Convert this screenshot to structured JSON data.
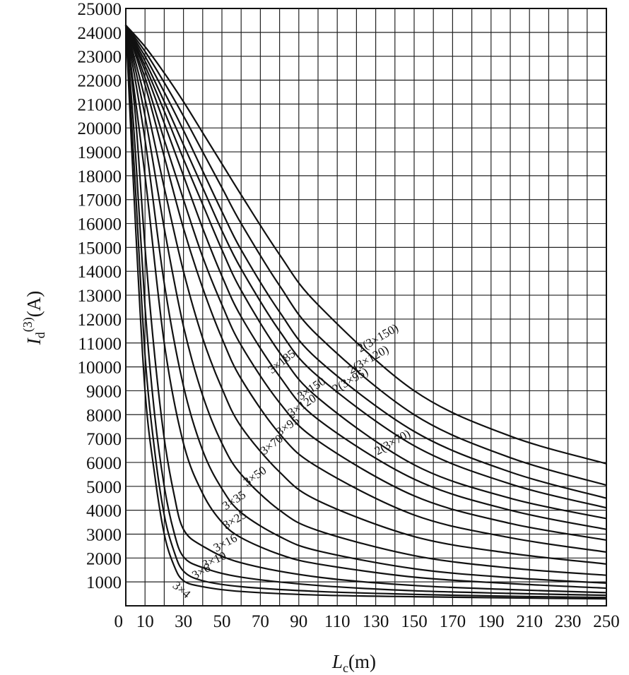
{
  "chart_data": {
    "type": "line",
    "xlabel_symbol": "L",
    "xlabel_sub": "c",
    "xlabel_unit": "(m)",
    "ylabel_symbol": "I",
    "ylabel_sub": "d",
    "ylabel_sup": "(3)",
    "ylabel_unit": "(A)",
    "xlim": [
      0,
      250
    ],
    "ylim": [
      0,
      25000
    ],
    "x_ticks": [
      0,
      10,
      30,
      50,
      70,
      90,
      110,
      130,
      150,
      170,
      190,
      210,
      230,
      250
    ],
    "y_ticks": [
      1000,
      2000,
      3000,
      4000,
      5000,
      6000,
      7000,
      8000,
      9000,
      10000,
      11000,
      12000,
      13000,
      14000,
      15000,
      16000,
      17000,
      18000,
      19000,
      20000,
      21000,
      22000,
      23000,
      24000,
      25000
    ],
    "grid": true,
    "series": [
      {
        "name": "3×4",
        "points": [
          [
            0,
            24300
          ],
          [
            5,
            16000
          ],
          [
            10,
            9000
          ],
          [
            15,
            5500
          ],
          [
            20,
            3000
          ],
          [
            25,
            1700
          ],
          [
            30,
            1050
          ],
          [
            40,
            800
          ],
          [
            60,
            600
          ],
          [
            100,
            450
          ],
          [
            150,
            380
          ],
          [
            200,
            330
          ],
          [
            250,
            290
          ]
        ]
      },
      {
        "name": "3×6",
        "points": [
          [
            0,
            24300
          ],
          [
            5,
            17500
          ],
          [
            10,
            10500
          ],
          [
            15,
            6500
          ],
          [
            20,
            3800
          ],
          [
            25,
            2300
          ],
          [
            30,
            1450
          ],
          [
            40,
            1050
          ],
          [
            60,
            800
          ],
          [
            100,
            600
          ],
          [
            150,
            480
          ],
          [
            200,
            400
          ],
          [
            250,
            350
          ]
        ]
      },
      {
        "name": "3×10",
        "points": [
          [
            0,
            24300
          ],
          [
            5,
            19000
          ],
          [
            10,
            12500
          ],
          [
            15,
            8000
          ],
          [
            20,
            5000
          ],
          [
            25,
            3100
          ],
          [
            30,
            2050
          ],
          [
            40,
            1600
          ],
          [
            60,
            1200
          ],
          [
            100,
            850
          ],
          [
            150,
            630
          ],
          [
            200,
            520
          ],
          [
            250,
            440
          ]
        ]
      },
      {
        "name": "3×16",
        "points": [
          [
            0,
            24300
          ],
          [
            5,
            20500
          ],
          [
            10,
            15000
          ],
          [
            15,
            10500
          ],
          [
            20,
            7000
          ],
          [
            25,
            4700
          ],
          [
            30,
            3200
          ],
          [
            40,
            2500
          ],
          [
            60,
            1800
          ],
          [
            100,
            1200
          ],
          [
            150,
            850
          ],
          [
            200,
            680
          ],
          [
            250,
            550
          ]
        ]
      },
      {
        "name": "3×25",
        "points": [
          [
            0,
            24300
          ],
          [
            10,
            18000
          ],
          [
            20,
            11000
          ],
          [
            30,
            6800
          ],
          [
            40,
            4700
          ],
          [
            50,
            3500
          ],
          [
            60,
            2850
          ],
          [
            80,
            2150
          ],
          [
            100,
            1750
          ],
          [
            150,
            1200
          ],
          [
            200,
            930
          ],
          [
            250,
            740
          ]
        ]
      },
      {
        "name": "3×35",
        "points": [
          [
            0,
            24300
          ],
          [
            10,
            19500
          ],
          [
            20,
            13500
          ],
          [
            30,
            9200
          ],
          [
            40,
            6500
          ],
          [
            50,
            4900
          ],
          [
            60,
            3900
          ],
          [
            80,
            2900
          ],
          [
            100,
            2300
          ],
          [
            150,
            1550
          ],
          [
            200,
            1180
          ],
          [
            250,
            950
          ]
        ]
      },
      {
        "name": "3×50",
        "points": [
          [
            0,
            24300
          ],
          [
            10,
            20500
          ],
          [
            20,
            15800
          ],
          [
            30,
            11700
          ],
          [
            40,
            8800
          ],
          [
            50,
            6800
          ],
          [
            60,
            5500
          ],
          [
            80,
            4000
          ],
          [
            100,
            3150
          ],
          [
            150,
            2100
          ],
          [
            200,
            1580
          ],
          [
            250,
            1280
          ]
        ]
      },
      {
        "name": "3×70",
        "points": [
          [
            0,
            24300
          ],
          [
            10,
            21200
          ],
          [
            20,
            17500
          ],
          [
            30,
            14000
          ],
          [
            40,
            11200
          ],
          [
            50,
            9100
          ],
          [
            60,
            7500
          ],
          [
            80,
            5600
          ],
          [
            100,
            4400
          ],
          [
            150,
            2900
          ],
          [
            200,
            2200
          ],
          [
            250,
            1750
          ]
        ]
      },
      {
        "name": "3×95",
        "points": [
          [
            0,
            24300
          ],
          [
            10,
            21800
          ],
          [
            20,
            18800
          ],
          [
            30,
            15800
          ],
          [
            40,
            13300
          ],
          [
            50,
            11200
          ],
          [
            60,
            9500
          ],
          [
            80,
            7200
          ],
          [
            100,
            5800
          ],
          [
            150,
            3800
          ],
          [
            200,
            2850
          ],
          [
            250,
            2250
          ]
        ]
      },
      {
        "name": "3×120",
        "points": [
          [
            0,
            24300
          ],
          [
            10,
            22100
          ],
          [
            20,
            19500
          ],
          [
            30,
            17000
          ],
          [
            40,
            14600
          ],
          [
            50,
            12600
          ],
          [
            60,
            10900
          ],
          [
            80,
            8500
          ],
          [
            100,
            6900
          ],
          [
            150,
            4600
          ],
          [
            200,
            3450
          ],
          [
            250,
            2750
          ]
        ]
      },
      {
        "name": "3×150",
        "points": [
          [
            0,
            24300
          ],
          [
            10,
            22400
          ],
          [
            20,
            20200
          ],
          [
            30,
            18000
          ],
          [
            40,
            15800
          ],
          [
            50,
            13800
          ],
          [
            60,
            12100
          ],
          [
            80,
            9600
          ],
          [
            100,
            7800
          ],
          [
            150,
            5300
          ],
          [
            200,
            4000
          ],
          [
            250,
            3200
          ]
        ]
      },
      {
        "name": "3×185",
        "points": [
          [
            0,
            24300
          ],
          [
            10,
            22600
          ],
          [
            20,
            20700
          ],
          [
            30,
            18700
          ],
          [
            40,
            16800
          ],
          [
            50,
            14900
          ],
          [
            60,
            13200
          ],
          [
            80,
            10600
          ],
          [
            100,
            8700
          ],
          [
            150,
            5900
          ],
          [
            200,
            4500
          ],
          [
            250,
            3650
          ]
        ]
      },
      {
        "name": "2(3×70)",
        "points": [
          [
            0,
            24300
          ],
          [
            10,
            22800
          ],
          [
            20,
            21100
          ],
          [
            30,
            19300
          ],
          [
            40,
            17500
          ],
          [
            50,
            15700
          ],
          [
            60,
            14100
          ],
          [
            80,
            11500
          ],
          [
            100,
            9600
          ],
          [
            150,
            6700
          ],
          [
            200,
            5100
          ],
          [
            250,
            4100
          ]
        ]
      },
      {
        "name": "2(3×95)",
        "points": [
          [
            0,
            24300
          ],
          [
            10,
            23000
          ],
          [
            20,
            21500
          ],
          [
            30,
            19900
          ],
          [
            40,
            18200
          ],
          [
            50,
            16500
          ],
          [
            60,
            14900
          ],
          [
            80,
            12300
          ],
          [
            100,
            10300
          ],
          [
            150,
            7300
          ],
          [
            200,
            5600
          ],
          [
            250,
            4500
          ]
        ]
      },
      {
        "name": "2(3×120)",
        "points": [
          [
            0,
            24300
          ],
          [
            10,
            23200
          ],
          [
            20,
            21900
          ],
          [
            30,
            20500
          ],
          [
            40,
            19000
          ],
          [
            50,
            17500
          ],
          [
            60,
            16000
          ],
          [
            80,
            13400
          ],
          [
            100,
            11300
          ],
          [
            150,
            8000
          ],
          [
            200,
            6200
          ],
          [
            250,
            5050
          ]
        ]
      },
      {
        "name": "2(3×150)",
        "points": [
          [
            0,
            24300
          ],
          [
            10,
            23400
          ],
          [
            20,
            22300
          ],
          [
            30,
            21100
          ],
          [
            40,
            19800
          ],
          [
            50,
            18500
          ],
          [
            60,
            17200
          ],
          [
            80,
            14700
          ],
          [
            100,
            12600
          ],
          [
            150,
            9000
          ],
          [
            200,
            7100
          ],
          [
            250,
            5950
          ]
        ]
      }
    ],
    "labels": [
      {
        "text": "3×4",
        "x": 24,
        "y": 800,
        "angle": 40
      },
      {
        "text": "3×6",
        "x": 36,
        "y": 1100,
        "angle": -30
      },
      {
        "text": "3×10",
        "x": 41,
        "y": 1550,
        "angle": -25
      },
      {
        "text": "3×16",
        "x": 47,
        "y": 2250,
        "angle": -28
      },
      {
        "text": "3×25",
        "x": 52,
        "y": 3200,
        "angle": -30
      },
      {
        "text": "3×35",
        "x": 52,
        "y": 4000,
        "angle": -33
      },
      {
        "text": "3×50",
        "x": 63,
        "y": 5000,
        "angle": -35
      },
      {
        "text": "3×70",
        "x": 72,
        "y": 6300,
        "angle": -38
      },
      {
        "text": "3×95",
        "x": 80,
        "y": 7100,
        "angle": -35
      },
      {
        "text": "3×120",
        "x": 86,
        "y": 7900,
        "angle": -33
      },
      {
        "text": "3×150",
        "x": 91,
        "y": 8600,
        "angle": -34
      },
      {
        "text": "3×185",
        "x": 76,
        "y": 9700,
        "angle": -38
      },
      {
        "text": "2(3×70)",
        "x": 131,
        "y": 6300,
        "angle": -30
      },
      {
        "text": "2(3×95)",
        "x": 109,
        "y": 8900,
        "angle": -30
      },
      {
        "text": "2(3×120)",
        "x": 117,
        "y": 9700,
        "angle": -30
      },
      {
        "text": "2(3×150)",
        "x": 122,
        "y": 10600,
        "angle": -30
      }
    ]
  }
}
